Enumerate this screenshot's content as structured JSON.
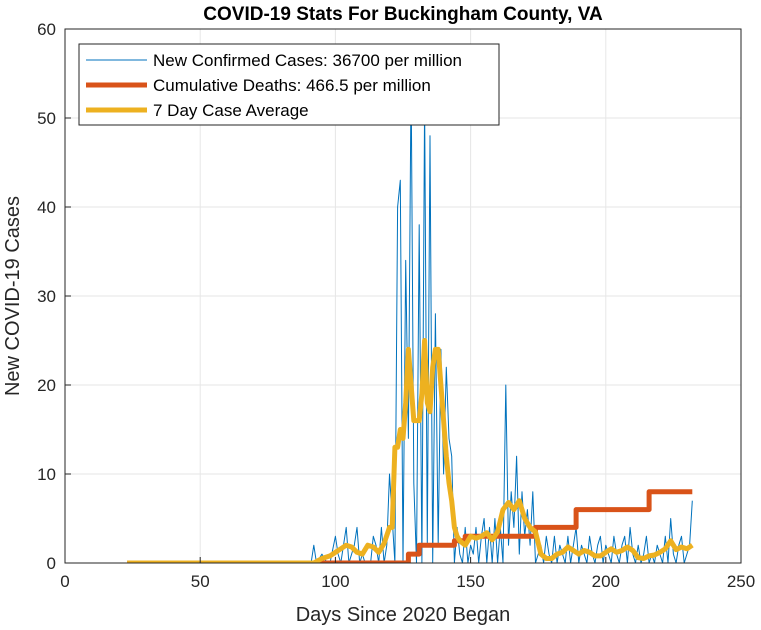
{
  "chart_data": {
    "type": "line",
    "title": "COVID-19 Stats For Buckingham County, VA",
    "xlabel": "Days Since 2020 Began",
    "ylabel": "New COVID-19 Cases",
    "xlim": [
      0,
      250
    ],
    "ylim": [
      0,
      60
    ],
    "xticks": [
      0,
      50,
      100,
      150,
      200,
      250
    ],
    "yticks": [
      0,
      10,
      20,
      30,
      40,
      50,
      60
    ],
    "grid": true,
    "legend_position": "top-left",
    "series": [
      {
        "name": "New Confirmed Cases: 36700 per million",
        "color": "#0072BD",
        "style": "thin",
        "points": [
          [
            23,
            0
          ],
          [
            91,
            0
          ],
          [
            92,
            2
          ],
          [
            93,
            0
          ],
          [
            95,
            1
          ],
          [
            97,
            0
          ],
          [
            98,
            0
          ],
          [
            100,
            3
          ],
          [
            101,
            1
          ],
          [
            102,
            0
          ],
          [
            103,
            2
          ],
          [
            104,
            4
          ],
          [
            105,
            0
          ],
          [
            106,
            1
          ],
          [
            107,
            2
          ],
          [
            108,
            4
          ],
          [
            109,
            0
          ],
          [
            110,
            1
          ],
          [
            111,
            0
          ],
          [
            112,
            0
          ],
          [
            113,
            0
          ],
          [
            114,
            3
          ],
          [
            115,
            2
          ],
          [
            116,
            0
          ],
          [
            117,
            4
          ],
          [
            118,
            0
          ],
          [
            119,
            2
          ],
          [
            120,
            10
          ],
          [
            121,
            5
          ],
          [
            122,
            0
          ],
          [
            123,
            40
          ],
          [
            124,
            43
          ],
          [
            125,
            0
          ],
          [
            126,
            34
          ],
          [
            127,
            14
          ],
          [
            128,
            55
          ],
          [
            129,
            9
          ],
          [
            130,
            0
          ],
          [
            131,
            38
          ],
          [
            132,
            0
          ],
          [
            133,
            52
          ],
          [
            134,
            2
          ],
          [
            135,
            48
          ],
          [
            136,
            0
          ],
          [
            137,
            28
          ],
          [
            138,
            2
          ],
          [
            139,
            24
          ],
          [
            140,
            10
          ],
          [
            141,
            22
          ],
          [
            142,
            14
          ],
          [
            143,
            12
          ],
          [
            144,
            0
          ],
          [
            145,
            4
          ],
          [
            146,
            1
          ],
          [
            147,
            0
          ],
          [
            148,
            4
          ],
          [
            149,
            0
          ],
          [
            150,
            2
          ],
          [
            151,
            1
          ],
          [
            152,
            4
          ],
          [
            153,
            0
          ],
          [
            154,
            3
          ],
          [
            155,
            5
          ],
          [
            156,
            0
          ],
          [
            157,
            4
          ],
          [
            158,
            0
          ],
          [
            159,
            5
          ],
          [
            160,
            0
          ],
          [
            161,
            4
          ],
          [
            162,
            0
          ],
          [
            163,
            20
          ],
          [
            164,
            2
          ],
          [
            165,
            8
          ],
          [
            166,
            4
          ],
          [
            167,
            12
          ],
          [
            168,
            1
          ],
          [
            169,
            8
          ],
          [
            170,
            3
          ],
          [
            171,
            6
          ],
          [
            172,
            2
          ],
          [
            173,
            8
          ],
          [
            174,
            0
          ],
          [
            175,
            1
          ],
          [
            176,
            2
          ],
          [
            177,
            0
          ],
          [
            178,
            3
          ],
          [
            179,
            1
          ],
          [
            180,
            0
          ],
          [
            181,
            3
          ],
          [
            182,
            0
          ],
          [
            183,
            2
          ],
          [
            184,
            1
          ],
          [
            185,
            0
          ],
          [
            186,
            3
          ],
          [
            187,
            0
          ],
          [
            188,
            2
          ],
          [
            189,
            4
          ],
          [
            190,
            0
          ],
          [
            191,
            2
          ],
          [
            192,
            1
          ],
          [
            193,
            0
          ],
          [
            194,
            3
          ],
          [
            195,
            1
          ],
          [
            196,
            0
          ],
          [
            197,
            2
          ],
          [
            198,
            3
          ],
          [
            199,
            0
          ],
          [
            200,
            2
          ],
          [
            201,
            1
          ],
          [
            202,
            0
          ],
          [
            203,
            3
          ],
          [
            204,
            1
          ],
          [
            205,
            0
          ],
          [
            206,
            2
          ],
          [
            207,
            3
          ],
          [
            208,
            0
          ],
          [
            209,
            4
          ],
          [
            210,
            1
          ],
          [
            211,
            0
          ],
          [
            212,
            2
          ],
          [
            213,
            0
          ],
          [
            214,
            1
          ],
          [
            215,
            3
          ],
          [
            216,
            0
          ],
          [
            217,
            1
          ],
          [
            218,
            0
          ],
          [
            219,
            2
          ],
          [
            220,
            1
          ],
          [
            221,
            0
          ],
          [
            222,
            3
          ],
          [
            223,
            0
          ],
          [
            224,
            5
          ],
          [
            225,
            1
          ],
          [
            226,
            0
          ],
          [
            227,
            2
          ],
          [
            228,
            3
          ],
          [
            229,
            0
          ],
          [
            230,
            1
          ],
          [
            231,
            2
          ],
          [
            232,
            7
          ]
        ]
      },
      {
        "name": "Cumulative Deaths: 466.5 per million",
        "color": "#D95319",
        "style": "thick",
        "points": [
          [
            23,
            0
          ],
          [
            127,
            0
          ],
          [
            127,
            1
          ],
          [
            131,
            1
          ],
          [
            131,
            2
          ],
          [
            144,
            2
          ],
          [
            144,
            2.5
          ],
          [
            148,
            2.5
          ],
          [
            148,
            3
          ],
          [
            174,
            3
          ],
          [
            174,
            4
          ],
          [
            189,
            4
          ],
          [
            189,
            6
          ],
          [
            216,
            6
          ],
          [
            216,
            8
          ],
          [
            232,
            8
          ]
        ]
      },
      {
        "name": "7 Day Case Average",
        "color": "#EDB120",
        "style": "thick",
        "points": [
          [
            23,
            0
          ],
          [
            92,
            0
          ],
          [
            95,
            0.5
          ],
          [
            98,
            0.8
          ],
          [
            100,
            1.2
          ],
          [
            102,
            1.6
          ],
          [
            104,
            2
          ],
          [
            106,
            1.8
          ],
          [
            108,
            1.2
          ],
          [
            110,
            1
          ],
          [
            112,
            2
          ],
          [
            114,
            1.8
          ],
          [
            116,
            1.2
          ],
          [
            118,
            2.2
          ],
          [
            120,
            4
          ],
          [
            121,
            4
          ],
          [
            122,
            13
          ],
          [
            123,
            13
          ],
          [
            124,
            15
          ],
          [
            125,
            14
          ],
          [
            126,
            18
          ],
          [
            127,
            24
          ],
          [
            128,
            20
          ],
          [
            129,
            16
          ],
          [
            130,
            16
          ],
          [
            131,
            16
          ],
          [
            132,
            19
          ],
          [
            133,
            25
          ],
          [
            134,
            18
          ],
          [
            135,
            17
          ],
          [
            136,
            22
          ],
          [
            137,
            24
          ],
          [
            138,
            24
          ],
          [
            139,
            20
          ],
          [
            140,
            16
          ],
          [
            141,
            12
          ],
          [
            142,
            9
          ],
          [
            143,
            7
          ],
          [
            144,
            4
          ],
          [
            145,
            3
          ],
          [
            146,
            2.5
          ],
          [
            148,
            2
          ],
          [
            150,
            3
          ],
          [
            152,
            2.8
          ],
          [
            154,
            3
          ],
          [
            156,
            3.4
          ],
          [
            158,
            2.6
          ],
          [
            160,
            3.5
          ],
          [
            162,
            6
          ],
          [
            164,
            6.8
          ],
          [
            166,
            6
          ],
          [
            168,
            7
          ],
          [
            170,
            5
          ],
          [
            172,
            4
          ],
          [
            174,
            3.5
          ],
          [
            176,
            1
          ],
          [
            178,
            0.5
          ],
          [
            180,
            0.5
          ],
          [
            182,
            1
          ],
          [
            184,
            1.2
          ],
          [
            186,
            1.8
          ],
          [
            188,
            1.4
          ],
          [
            190,
            1
          ],
          [
            192,
            1.4
          ],
          [
            194,
            1.2
          ],
          [
            196,
            0.8
          ],
          [
            198,
            0.8
          ],
          [
            200,
            1.2
          ],
          [
            202,
            1.6
          ],
          [
            204,
            1.2
          ],
          [
            206,
            1.4
          ],
          [
            208,
            1.8
          ],
          [
            210,
            1.4
          ],
          [
            212,
            0.6
          ],
          [
            214,
            0.5
          ],
          [
            216,
            0.8
          ],
          [
            218,
            0.9
          ],
          [
            220,
            1.2
          ],
          [
            222,
            1.6
          ],
          [
            224,
            2.5
          ],
          [
            226,
            1.5
          ],
          [
            228,
            1.8
          ],
          [
            230,
            1.6
          ],
          [
            232,
            2
          ]
        ]
      }
    ]
  }
}
